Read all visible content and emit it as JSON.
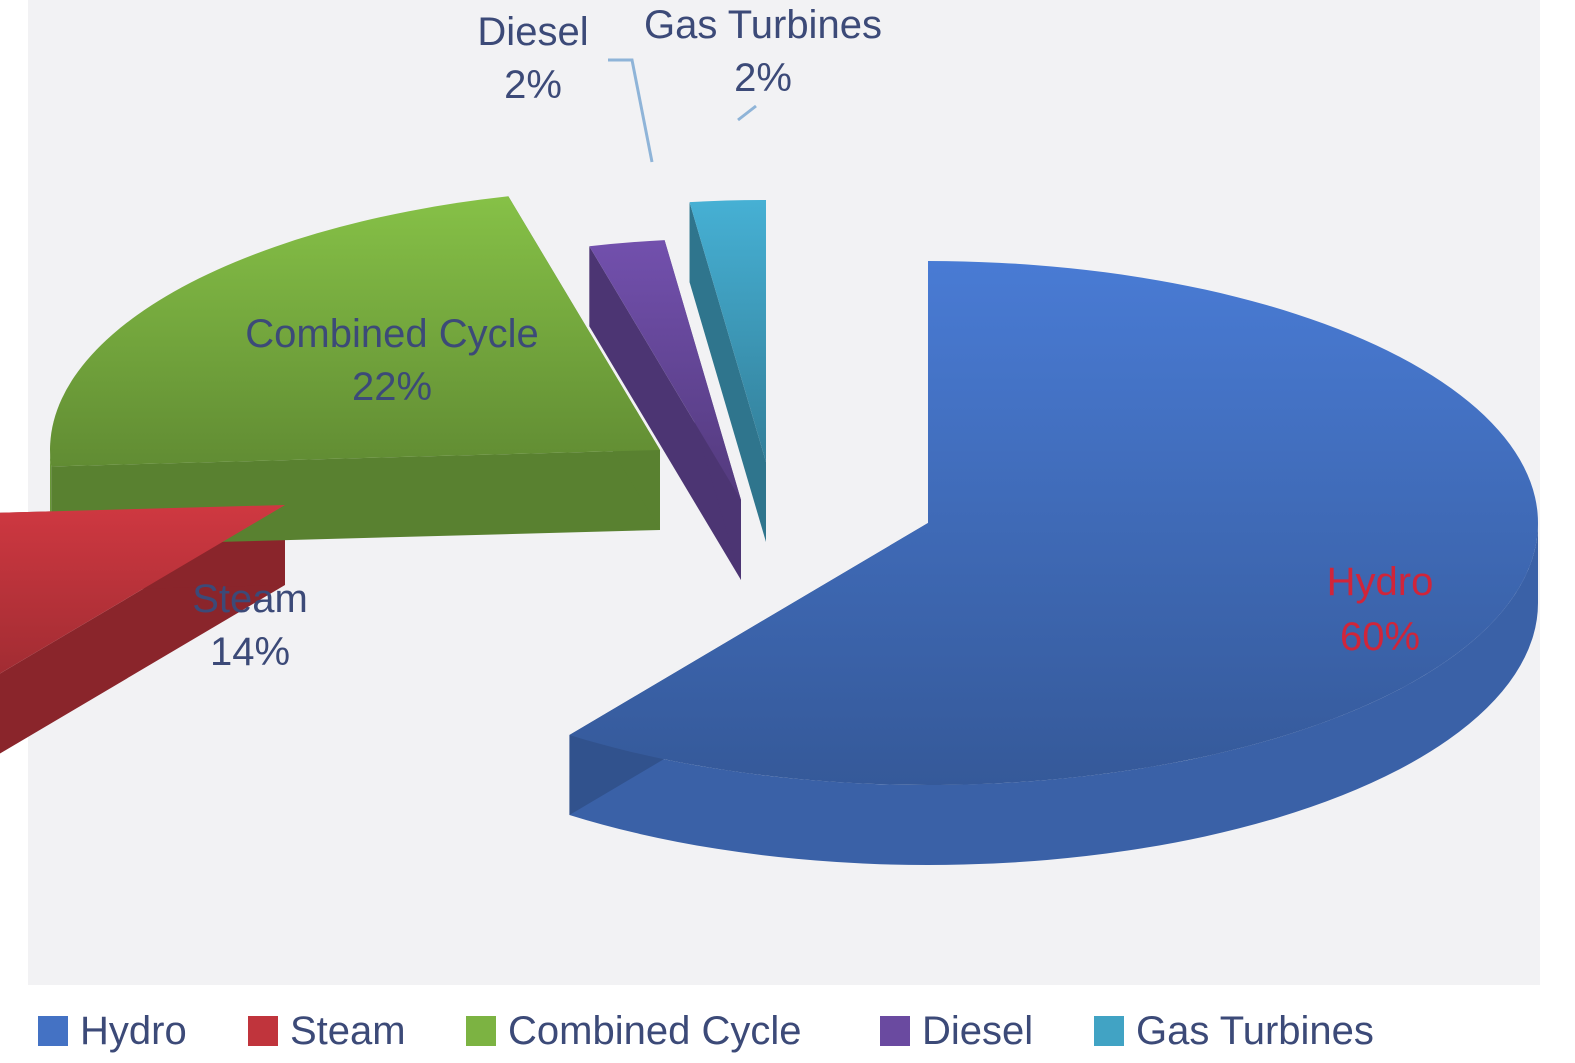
{
  "chart_data": {
    "type": "pie",
    "style": "3d-exploded",
    "title": "",
    "series": [
      {
        "values": [
          60,
          14,
          22,
          2,
          2
        ]
      }
    ],
    "categories": [
      "Hydro",
      "Steam",
      "Combined Cycle",
      "Diesel",
      "Gas Turbines"
    ],
    "slices": [
      {
        "name": "Hydro",
        "value": 60,
        "label": "60%",
        "color": "#4472c4",
        "label_color": "#d0253a"
      },
      {
        "name": "Steam",
        "value": 14,
        "label": "14%",
        "color": "#c0343c",
        "label_color": "#3c4a78"
      },
      {
        "name": "Combined Cycle",
        "value": 22,
        "label": "22%",
        "color": "#7cb342",
        "label_color": "#3c4a78"
      },
      {
        "name": "Diesel",
        "value": 2,
        "label": "2%",
        "color": "#6a4aa0",
        "label_color": "#3c4a78"
      },
      {
        "name": "Gas Turbines",
        "value": 2,
        "label": "2%",
        "color": "#41a3c4",
        "label_color": "#3c4a78"
      }
    ],
    "legend": {
      "position": "bottom",
      "items": [
        "Hydro",
        "Steam",
        "Combined Cycle",
        "Diesel",
        "Gas Turbines"
      ]
    }
  }
}
